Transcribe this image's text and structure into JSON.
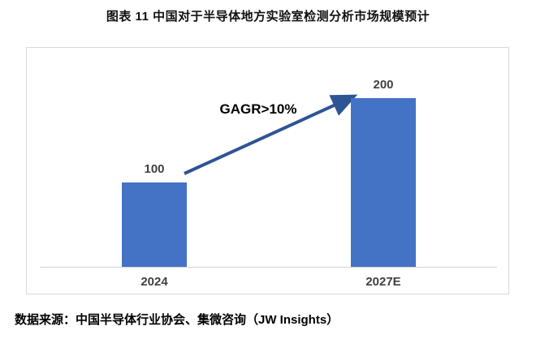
{
  "title": "图表 11 中国对于半导体地方实验室检测分析市场规模预计",
  "source": "数据来源：中国半导体行业协会、集微咨询（JW Insights）",
  "chart_data": {
    "type": "bar",
    "title": "图表 11 中国对于半导体地方实验室检测分析市场规模预计",
    "categories": [
      "2024",
      "2027E"
    ],
    "values": [
      100,
      200
    ],
    "value_labels": [
      "100",
      "200"
    ],
    "annotation": "GAGR>10%",
    "xlabel": "",
    "ylabel": "",
    "ylim": [
      0,
      260
    ],
    "grid": false,
    "legend": false,
    "colors": {
      "bar": "#4472C4",
      "arrow": "#2E5496",
      "axis_line": "#D2D2D2",
      "value_label": "#404040",
      "category_label": "#404040",
      "chart_border": "#D9D9D9",
      "title_text": "#111111",
      "source_text": "#000000"
    }
  }
}
